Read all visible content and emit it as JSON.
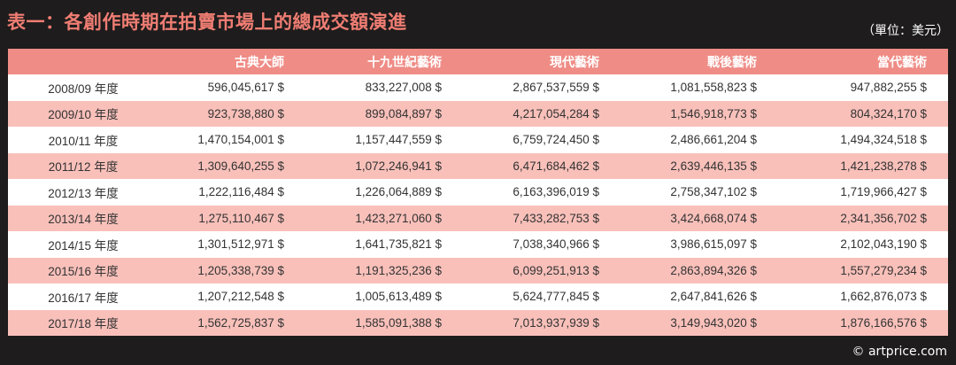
{
  "title": "表一：各創作時期在拍賣市場上的總成交額演進",
  "unit": "（單位：美元）",
  "table": {
    "headers": [
      "",
      "古典大師",
      "十九世紀藝術",
      "現代藝術",
      "戰後藝術",
      "當代藝術"
    ],
    "rows": [
      [
        "2008/09 年度",
        "596,045,617 $",
        "833,227,008 $",
        "2,867,537,559 $",
        "1,081,558,823 $",
        "947,882,255 $"
      ],
      [
        "2009/10 年度",
        "923,738,880 $",
        "899,084,897 $",
        "4,217,054,284 $",
        "1,546,918,773 $",
        "804,324,170 $"
      ],
      [
        "2010/11 年度",
        "1,470,154,001 $",
        "1,157,447,559 $",
        "6,759,724,450 $",
        "2,486,661,204 $",
        "1,494,324,518 $"
      ],
      [
        "2011/12 年度",
        "1,309,640,255 $",
        "1,072,246,941 $",
        "6,471,684,462 $",
        "2,639,446,135 $",
        "1,421,238,278 $"
      ],
      [
        "2012/13 年度",
        "1,222,116,484 $",
        "1,226,064,889 $",
        "6,163,396,019 $",
        "2,758,347,102 $",
        "1,719,966,427 $"
      ],
      [
        "2013/14 年度",
        "1,275,110,467 $",
        "1,423,271,060 $",
        "7,433,282,753 $",
        "3,424,668,074 $",
        "2,341,356,702 $"
      ],
      [
        "2014/15 年度",
        "1,301,512,971 $",
        "1,641,735,821 $",
        "7,038,340,966 $",
        "3,986,615,097 $",
        "2,102,043,190 $"
      ],
      [
        "2015/16 年度",
        "1,205,338,739 $",
        "1,191,325,236 $",
        "6,099,251,913 $",
        "2,863,894,326 $",
        "1,557,279,234 $"
      ],
      [
        "2016/17 年度",
        "1,207,212,548 $",
        "1,005,613,489 $",
        "5,624,777,845 $",
        "2,647,841,626 $",
        "1,662,876,073 $"
      ],
      [
        "2017/18 年度",
        "1,562,725,837 $",
        "1,585,091,388 $",
        "7,013,937,939 $",
        "3,149,943,020 $",
        "1,876,166,576 $"
      ]
    ]
  },
  "copyright": "© artprice.com",
  "colors": {
    "background": "#1e1c1c",
    "title": "#ef7d73",
    "header_row": "#ef8c86",
    "row_light": "#ffffff",
    "row_pink": "#f9c0ba"
  }
}
